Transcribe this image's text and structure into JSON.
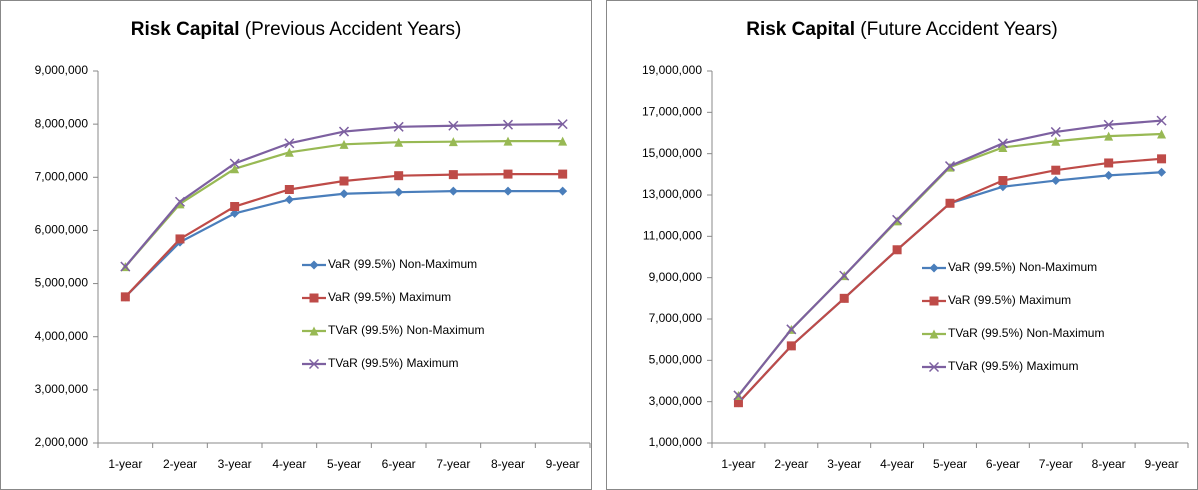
{
  "chart_data": [
    {
      "type": "line",
      "title": "Risk Capital",
      "subtitle": "(Previous Accident Years)",
      "categories": [
        "1-year",
        "2-year",
        "3-year",
        "4-year",
        "5-year",
        "6-year",
        "7-year",
        "8-year",
        "9-year"
      ],
      "ylim": [
        2000000,
        9000000
      ],
      "yticks": [
        {
          "value": 2000000,
          "label": "2,000,000"
        },
        {
          "value": 3000000,
          "label": "3,000,000"
        },
        {
          "value": 4000000,
          "label": "4,000,000"
        },
        {
          "value": 5000000,
          "label": "5,000,000"
        },
        {
          "value": 6000000,
          "label": "6,000,000"
        },
        {
          "value": 7000000,
          "label": "7,000,000"
        },
        {
          "value": 8000000,
          "label": "8,000,000"
        },
        {
          "value": 9000000,
          "label": "9,000,000"
        }
      ],
      "legend": "center-right",
      "series": [
        {
          "name": "VaR (99.5%) Non-Maximum",
          "color": "#4a7ebb",
          "marker": "diamond",
          "values": [
            4750000,
            5780000,
            6320000,
            6580000,
            6690000,
            6720000,
            6740000,
            6740000,
            6740000
          ]
        },
        {
          "name": "VaR (99.5%) Maximum",
          "color": "#be4b48",
          "marker": "square",
          "values": [
            4750000,
            5840000,
            6450000,
            6770000,
            6930000,
            7030000,
            7050000,
            7060000,
            7060000
          ]
        },
        {
          "name": "TVaR (99.5%) Non-Maximum",
          "color": "#98b954",
          "marker": "triangle",
          "values": [
            5320000,
            6500000,
            7160000,
            7470000,
            7620000,
            7660000,
            7670000,
            7680000,
            7680000
          ]
        },
        {
          "name": "TVaR (99.5%) Maximum",
          "color": "#7d60a0",
          "marker": "x",
          "values": [
            5320000,
            6540000,
            7260000,
            7640000,
            7860000,
            7950000,
            7970000,
            7990000,
            8000000
          ]
        }
      ]
    },
    {
      "type": "line",
      "title": "Risk Capital",
      "subtitle": "(Future Accident Years)",
      "categories": [
        "1-year",
        "2-year",
        "3-year",
        "4-year",
        "5-year",
        "6-year",
        "7-year",
        "8-year",
        "9-year"
      ],
      "ylim": [
        1000000,
        19000000
      ],
      "yticks": [
        {
          "value": 1000000,
          "label": "1,000,000"
        },
        {
          "value": 3000000,
          "label": "3,000,000"
        },
        {
          "value": 5000000,
          "label": "5,000,000"
        },
        {
          "value": 7000000,
          "label": "7,000,000"
        },
        {
          "value": 9000000,
          "label": "9,000,000"
        },
        {
          "value": 11000000,
          "label": "11,000,000"
        },
        {
          "value": 13000000,
          "label": "13,000,000"
        },
        {
          "value": 15000000,
          "label": "15,000,000"
        },
        {
          "value": 17000000,
          "label": "17,000,000"
        },
        {
          "value": 19000000,
          "label": "19,000,000"
        }
      ],
      "legend": "center-right",
      "series": [
        {
          "name": "VaR (99.5%) Non-Maximum",
          "color": "#4a7ebb",
          "marker": "diamond",
          "values": [
            2950000,
            5700000,
            8000000,
            10350000,
            12600000,
            13400000,
            13700000,
            13950000,
            14100000
          ]
        },
        {
          "name": "VaR (99.5%) Maximum",
          "color": "#be4b48",
          "marker": "square",
          "values": [
            2950000,
            5700000,
            8000000,
            10350000,
            12600000,
            13700000,
            14200000,
            14550000,
            14750000
          ]
        },
        {
          "name": "TVaR (99.5%) Non-Maximum",
          "color": "#98b954",
          "marker": "triangle",
          "values": [
            3300000,
            6500000,
            9100000,
            11750000,
            14350000,
            15300000,
            15600000,
            15850000,
            15950000
          ]
        },
        {
          "name": "TVaR (99.5%) Maximum",
          "color": "#7d60a0",
          "marker": "x",
          "values": [
            3300000,
            6500000,
            9100000,
            11800000,
            14400000,
            15500000,
            16050000,
            16400000,
            16600000
          ]
        }
      ]
    }
  ]
}
